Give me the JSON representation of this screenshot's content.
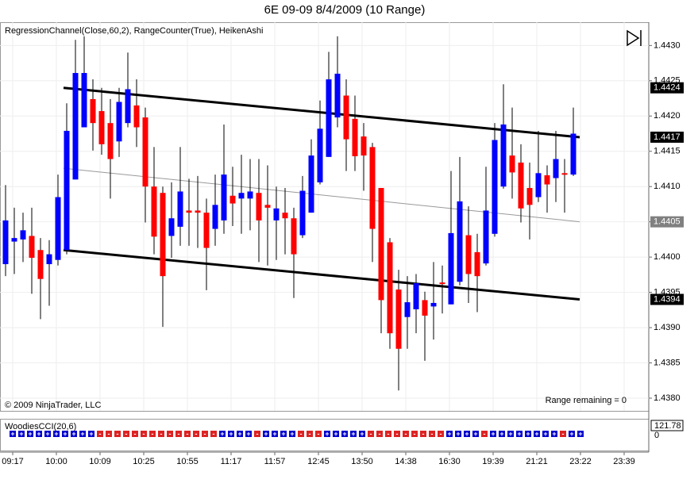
{
  "chart_data": {
    "type": "candlestick",
    "title": "6E 09-09  8/4/2009 (10 Range)",
    "indicators_label": "RegressionChannel(Close,60,2), RangeCounter(True), HeikenAshi",
    "copyright": "© 2009 NinjaTrader, LLC",
    "range_remaining": "Range remaining = 0",
    "categories": [
      "09:17",
      null,
      null,
      null,
      null,
      "10:00",
      null,
      null,
      null,
      null,
      "10:09",
      null,
      null,
      null,
      null,
      "10:25",
      null,
      null,
      null,
      null,
      "10:55",
      null,
      null,
      null,
      null,
      "11:17",
      null,
      null,
      null,
      null,
      "11:57",
      null,
      null,
      null,
      null,
      "12:45",
      null,
      null,
      null,
      null,
      "13:50",
      null,
      null,
      null,
      null,
      "14:38",
      null,
      null,
      null,
      null,
      "16:30",
      null,
      null,
      null,
      null,
      "19:39",
      null,
      null,
      null,
      null,
      "21:21",
      null,
      null,
      null,
      null,
      "23:22",
      null,
      null,
      null,
      null,
      "23:39"
    ],
    "open": [
      1.4399,
      1.44022,
      1.44025,
      1.4403,
      1.4401,
      1.4399,
      1.43996,
      1.4401,
      1.4411,
      1.44184,
      1.44224,
      1.44207,
      1.4419,
      1.44164,
      1.4419,
      1.44215,
      1.44198,
      1.441,
      1.44091,
      1.4403,
      1.44043,
      1.44066,
      1.44066,
      1.44063,
      1.4404,
      1.44052,
      1.44087,
      1.44083,
      1.44083,
      1.44091,
      1.44074,
      1.44052,
      1.44063,
      1.44055,
      1.44031,
      1.44063,
      1.44106,
      1.44142,
      1.44198,
      1.44229,
      1.44196,
      1.44171,
      1.44156,
      1.44098,
      1.44021,
      1.43954,
      1.43915,
      1.43926,
      1.43939,
      1.4393,
      1.43964,
      1.43933,
      1.43965,
      1.44031,
      1.44007,
      1.43991,
      1.44033,
      1.441,
      1.44144,
      1.44134,
      1.44098,
      1.44085,
      1.44116,
      1.44112,
      1.44119,
      1.44117,
      null,
      null,
      null,
      null,
      null
    ],
    "high": [
      1.44102,
      1.4407,
      1.44063,
      1.4407,
      1.44027,
      1.44024,
      1.44117,
      1.44218,
      1.44308,
      1.44313,
      1.44252,
      1.4424,
      1.44224,
      1.4424,
      1.4429,
      1.44252,
      1.44212,
      1.44156,
      1.441,
      1.44106,
      1.44156,
      1.44111,
      1.44115,
      1.44083,
      1.44117,
      1.44188,
      1.44128,
      1.44145,
      1.44139,
      1.44139,
      1.4413,
      1.441,
      1.44098,
      1.4407,
      1.44115,
      1.44167,
      1.44222,
      1.44291,
      1.44313,
      1.44252,
      1.44229,
      1.4419,
      1.44162,
      1.44098,
      1.44027,
      1.43982,
      1.43973,
      1.43976,
      1.43951,
      1.43993,
      1.43988,
      1.44122,
      1.44142,
      1.44072,
      1.44033,
      1.44128,
      1.4419,
      1.44245,
      1.44212,
      1.4416,
      1.44134,
      1.44179,
      1.4413,
      1.44179,
      1.44139,
      1.44212,
      null,
      null,
      null,
      null,
      null
    ],
    "low": [
      1.43973,
      1.43976,
      1.43993,
      1.43948,
      1.43912,
      1.43931,
      1.43988,
      1.44004,
      1.4411,
      1.44184,
      1.44151,
      1.44145,
      1.44083,
      1.44142,
      1.44184,
      1.44156,
      1.44049,
      1.44004,
      1.43901,
      1.43999,
      1.44016,
      1.44016,
      1.44013,
      1.43953,
      1.44016,
      1.44033,
      1.44044,
      1.44033,
      1.44038,
      1.43993,
      1.43988,
      1.43996,
      1.44004,
      1.43942,
      1.44027,
      1.44063,
      1.44103,
      1.44142,
      1.44184,
      1.44122,
      1.44122,
      1.44094,
      1.43993,
      1.43892,
      1.4387,
      1.43811,
      1.4387,
      1.43892,
      1.43853,
      1.43883,
      1.4392,
      1.43933,
      1.4396,
      1.43935,
      1.43922,
      1.43988,
      1.44029,
      1.44097,
      1.44083,
      1.44049,
      1.44025,
      1.44078,
      1.44063,
      1.44078,
      1.44063,
      1.44115,
      null,
      null,
      null,
      null,
      null
    ],
    "close": [
      1.44052,
      1.44027,
      1.44038,
      1.43999,
      1.43969,
      1.44004,
      1.44085,
      1.44179,
      1.44261,
      1.44261,
      1.4419,
      1.4416,
      1.44139,
      1.4422,
      1.44238,
      1.44184,
      1.441,
      1.44029,
      1.43973,
      1.44055,
      1.44093,
      1.44063,
      1.44063,
      1.44013,
      1.44074,
      1.44117,
      1.44076,
      1.44091,
      1.44093,
      1.44052,
      1.4407,
      1.44069,
      1.44055,
      1.44004,
      1.44094,
      1.44144,
      1.44182,
      1.44252,
      1.4426,
      1.44167,
      1.44143,
      1.44144,
      1.4404,
      1.43939,
      1.43892,
      1.4387,
      1.43936,
      1.43963,
      1.43917,
      1.43935,
      1.43962,
      1.44034,
      1.44079,
      1.43976,
      1.43973,
      1.44066,
      1.44166,
      1.44188,
      1.4412,
      1.44069,
      1.44074,
      1.44119,
      1.44103,
      1.44139,
      1.44117,
      1.44175,
      null,
      null,
      null,
      null,
      null
    ],
    "up_color": "#0000ff",
    "down_color": "#ff0000",
    "ylim": [
      1.43782,
      1.44333
    ],
    "yticks": [
      {
        "value": 1.443,
        "label": "1.4430"
      },
      {
        "value": 1.4425,
        "label": "1.4425"
      },
      {
        "value": 1.442,
        "label": "1.4420"
      },
      {
        "value": 1.4415,
        "label": "1.4415"
      },
      {
        "value": 1.441,
        "label": "1.4410"
      },
      {
        "value": 1.4405,
        "label": "1.4405"
      },
      {
        "value": 1.44,
        "label": "1.4400"
      },
      {
        "value": 1.4395,
        "label": "1.4395"
      },
      {
        "value": 1.439,
        "label": "1.4390"
      },
      {
        "value": 1.4385,
        "label": "1.4385"
      },
      {
        "value": 1.438,
        "label": "1.4380"
      }
    ],
    "grid": true,
    "regression_channel": {
      "upper": [
        1.4424,
        1.4417
      ],
      "middle": [
        1.44126,
        1.4405
      ],
      "lower": [
        1.4401,
        1.4394
      ]
    },
    "price_markers": [
      1.4424,
      1.4417,
      1.4405,
      1.4394
    ],
    "price_marker_colors": [
      "#000000",
      "#000000",
      "#808080",
      "#000000"
    ],
    "woodies_cci": {
      "label": "WoodiesCCI(20,6)",
      "value_label": "121.78",
      "zero_label": "0",
      "signs": [
        "+",
        "+",
        "+",
        "+",
        "+",
        "+",
        "+",
        "+",
        "+",
        "+",
        "-",
        "-",
        "-",
        "-",
        "-",
        "-",
        "-",
        "-",
        "-",
        "-",
        "-",
        "-",
        "-",
        "-",
        "+",
        "+",
        "+",
        "+",
        "-",
        "+",
        "+",
        "+",
        "+",
        "-",
        "-",
        "-",
        "+",
        "+",
        "+",
        "+",
        "+",
        "-",
        "-",
        "-",
        "-",
        "-",
        "-",
        "-",
        "-",
        "-",
        "+",
        "+",
        "+",
        "+",
        "-",
        "+",
        "+",
        "+",
        "+",
        "+",
        "+",
        "+",
        "+",
        "-",
        "+",
        "+"
      ],
      "plus_color": "#0000cc",
      "minus_color": "#dd2222"
    }
  }
}
